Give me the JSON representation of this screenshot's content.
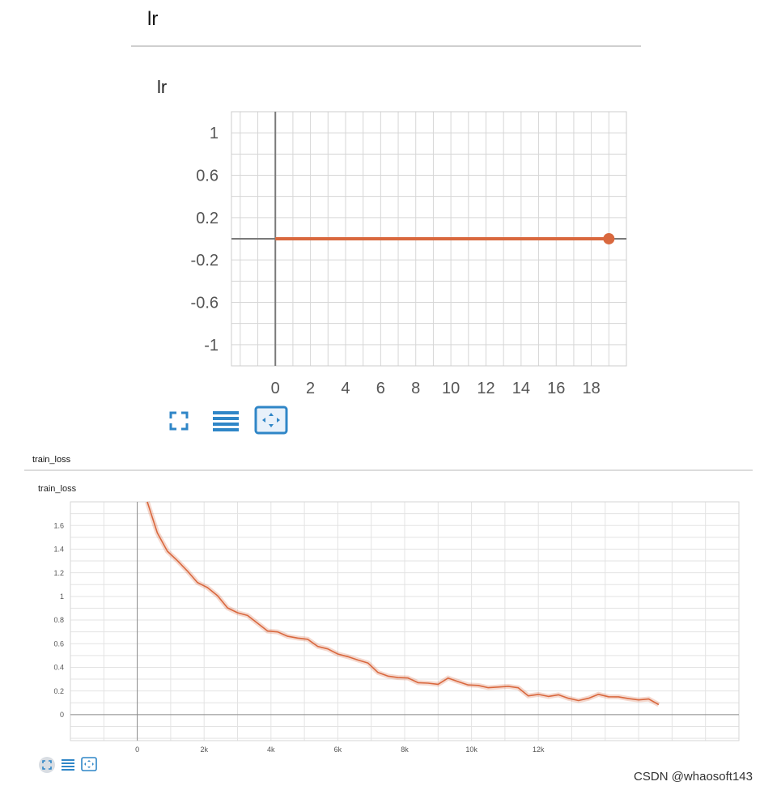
{
  "sections": [
    {
      "header": "lr",
      "chart_title": "lr"
    },
    {
      "header": "train_loss",
      "chart_title": "train_loss"
    }
  ],
  "chart_data": [
    {
      "type": "line",
      "title": "lr",
      "xlabel": "",
      "ylabel": "",
      "xlim": [
        -2.5,
        20
      ],
      "ylim": [
        -1.2,
        1.2
      ],
      "x_ticks": [
        0,
        2,
        4,
        6,
        8,
        10,
        12,
        14,
        16,
        18
      ],
      "y_ticks": [
        1,
        0.6,
        0.2,
        -0.2,
        -0.6,
        -1
      ],
      "x_tick_labels": [
        "0",
        "2",
        "4",
        "6",
        "8",
        "10",
        "12",
        "14",
        "16",
        "18"
      ],
      "y_tick_labels": [
        "1",
        "0.6",
        "0.2",
        "-0.2",
        "-0.6",
        "-1"
      ],
      "grid": true,
      "series": [
        {
          "color": "#d9683e",
          "x": [
            0,
            1,
            2,
            3,
            4,
            5,
            6,
            7,
            8,
            9,
            10,
            11,
            12,
            13,
            14,
            15,
            16,
            17,
            18,
            19
          ],
          "y": [
            0.0001,
            0.0001,
            0.0001,
            0.0001,
            0.0001,
            0.0001,
            0.0001,
            0.0001,
            0.0001,
            0.0001,
            0.0001,
            0.0001,
            0.0001,
            0.0001,
            0.0001,
            0.0001,
            0.0001,
            0.0001,
            0.0001,
            0.0001
          ]
        }
      ]
    },
    {
      "type": "line",
      "title": "train_loss",
      "xlabel": "",
      "ylabel": "",
      "xlim": [
        -2000,
        18000
      ],
      "ylim": [
        -0.22,
        1.8
      ],
      "x_ticks": [
        0,
        2000,
        4000,
        6000,
        8000,
        10000,
        12000,
        14000,
        16000
      ],
      "x_tick_labels": [
        "0",
        "2k",
        "4k",
        "6k",
        "8k",
        "10k",
        "12k",
        "",
        ""
      ],
      "y_ticks": [
        1.6,
        1.4,
        1.2,
        1,
        0.8,
        0.6,
        0.4,
        0.2,
        0
      ],
      "y_tick_labels": [
        "1.6",
        "1.4",
        "1.2",
        "1",
        "0.8",
        "0.6",
        "0.4",
        "0.2",
        "0"
      ],
      "grid": true,
      "series": [
        {
          "color": "#d9683e",
          "x": [
            300,
            600,
            900,
            1200,
            1500,
            1800,
            2100,
            2400,
            2700,
            3000,
            3300,
            3600,
            3900,
            4200,
            4500,
            4800,
            5100,
            5400,
            5700,
            6000,
            6300,
            6600,
            6900,
            7200,
            7500,
            7800,
            8100,
            8400,
            8700,
            9000,
            9300,
            9600,
            9900,
            10200,
            10500,
            10800,
            11100,
            11400,
            11700,
            12000,
            12300,
            12600,
            12900,
            13200,
            13500,
            13800,
            14100,
            14400,
            14700,
            15000,
            15300,
            15600
          ],
          "y": [
            1.8,
            1.5,
            1.38,
            1.28,
            1.2,
            1.1,
            1.05,
            1.0,
            0.93,
            0.88,
            0.84,
            0.78,
            0.74,
            0.7,
            0.67,
            0.63,
            0.6,
            0.56,
            0.53,
            0.5,
            0.46,
            0.44,
            0.41,
            0.38,
            0.36,
            0.34,
            0.33,
            0.31,
            0.3,
            0.28,
            0.27,
            0.25,
            0.24,
            0.23,
            0.22,
            0.21,
            0.2,
            0.19,
            0.18,
            0.18,
            0.17,
            0.17,
            0.16,
            0.15,
            0.15,
            0.14,
            0.14,
            0.13,
            0.13,
            0.12,
            0.12,
            0.08
          ]
        }
      ]
    }
  ],
  "controls": [
    {
      "icon": "expand-icon"
    },
    {
      "icon": "list-icon"
    },
    {
      "icon": "fit-domain-icon"
    }
  ],
  "watermark": "CSDN @whaosoft143"
}
